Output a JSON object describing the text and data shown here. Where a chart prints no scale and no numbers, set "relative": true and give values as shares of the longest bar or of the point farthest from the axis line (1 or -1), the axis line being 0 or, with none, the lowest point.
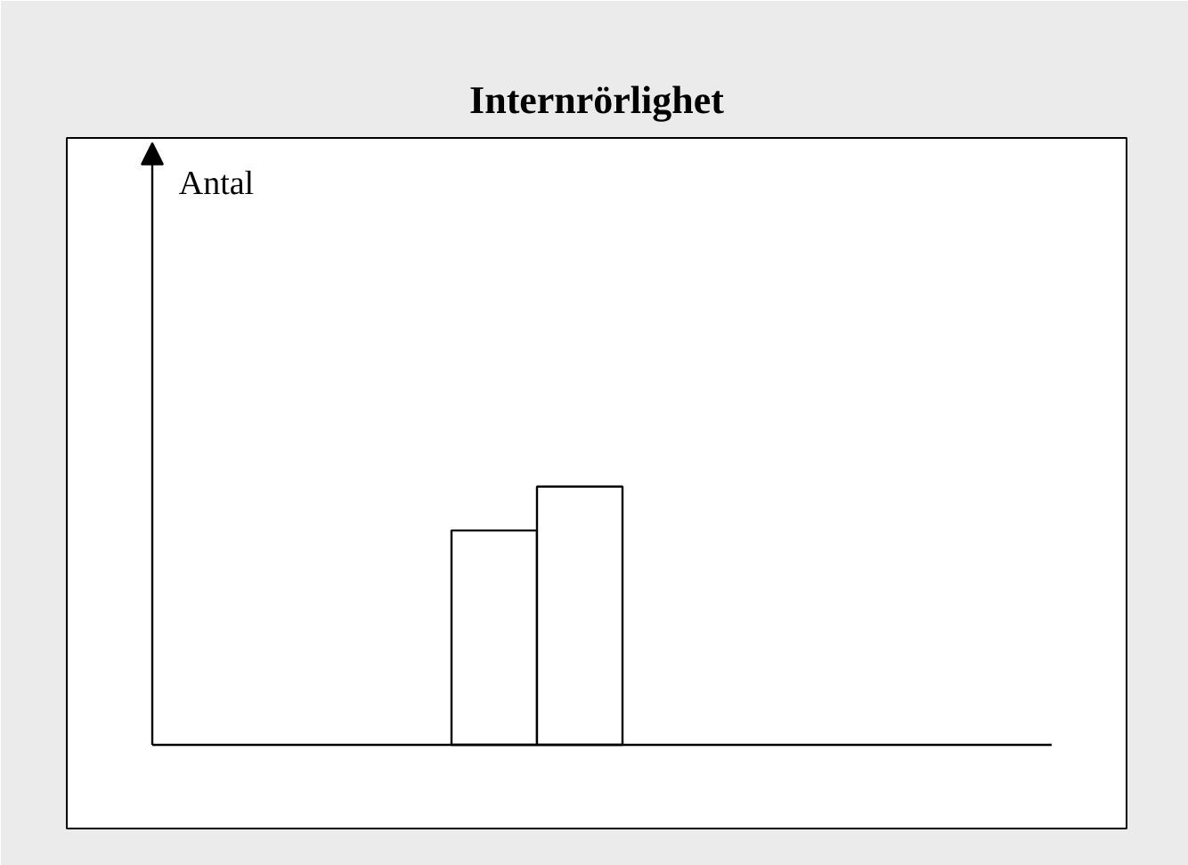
{
  "chart_data": {
    "type": "bar",
    "title": "Internrörlighet",
    "annotations": [
      "Antal"
    ],
    "categories": [
      null,
      null
    ],
    "values": [
      0.83,
      1
    ],
    "color": "#ffffff",
    "relative": true
  }
}
